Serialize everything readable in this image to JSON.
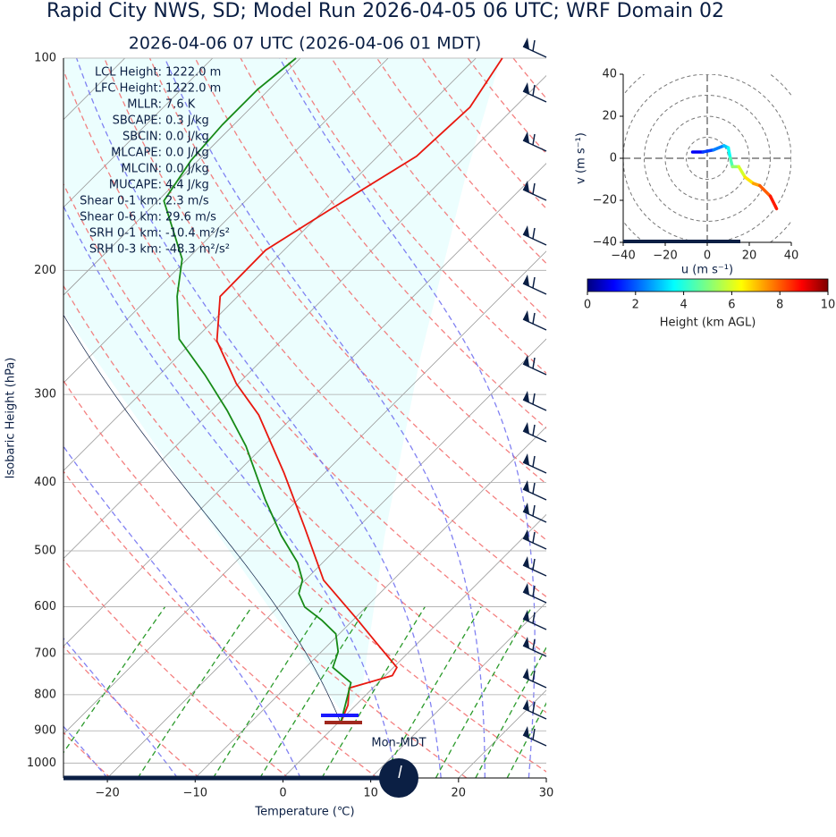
{
  "chart_data": [
    {
      "type": "skewt",
      "title": "Rapid City NWS, SD; Model Run 2026-04-05 06 UTC; WRF Domain 02",
      "subtitle": "2026-04-06 07 UTC  (2026-04-06 01 MDT)",
      "xlabel": "Temperature (℃)",
      "ylabel": "Isobaric Height (hPa)",
      "xlim": [
        -25,
        30
      ],
      "ylim": [
        1050,
        100
      ],
      "log_y": true,
      "grid": true,
      "xticks": [
        {
          "value": -20,
          "label": "−20"
        },
        {
          "value": -10,
          "label": "−10"
        },
        0,
        10,
        20,
        30
      ],
      "yticks": [
        100,
        200,
        300,
        400,
        500,
        600,
        700,
        800,
        900,
        1000
      ],
      "series": [
        {
          "color": "#e8180f",
          "pressure": [
            100,
            117.4,
            137.8,
            164.1,
            187.2,
            217.8,
            251.9,
            289.7,
            320.8,
            387.8,
            461.9,
            550.3,
            623.6,
            674.8,
            731.9,
            751.6,
            782.9,
            827.4,
            877
          ],
          "values": [
            -57.0,
            -55.1,
            -55.6,
            -59.4,
            -62.1,
            -62.0,
            -57.3,
            -50.2,
            -44.1,
            -34.6,
            -26.2,
            -17.9,
            -9.8,
            -4.8,
            0.4,
            0.8,
            -2.7,
            -0.9,
            0.3
          ]
        },
        {
          "color": "#178a17",
          "pressure": [
            100,
            110.7,
            124.4,
            139.8,
            159.4,
            192.7,
            217.8,
            250.4,
            281.4,
            316.2,
            355.3,
            423.2,
            475.6,
            519.2,
            550.3,
            574.9,
            600.6,
            627.5,
            655.6,
            694.9,
            731.9,
            769.3,
            827.4,
            877
          ],
          "values": [
            -80.5,
            -81.3,
            -81.3,
            -80.8,
            -79.3,
            -70.6,
            -66.9,
            -61.8,
            -54.8,
            -48.2,
            -42.0,
            -33.7,
            -27.8,
            -22.9,
            -20.3,
            -19.2,
            -17.0,
            -13.5,
            -10.4,
            -8.1,
            -6.9,
            -3.1,
            -1.2,
            0.3
          ]
        }
      ],
      "annotations": [
        {
          "label": "LCL Height:",
          "value": "1222.0 m"
        },
        {
          "label": "LFC Height:",
          "value": "1222.0 m"
        },
        {
          "label": "MLLR:",
          "value": "7.6 K"
        },
        {
          "label": "SBCAPE:",
          "value": "0.3 J/kg"
        },
        {
          "label": "SBCIN:",
          "value": "0.0 J/kg"
        },
        {
          "label": "MLCAPE:",
          "value": "0.0 J/kg"
        },
        {
          "label": "MLCIN:",
          "value": "0.0 J/kg"
        },
        {
          "label": "MUCAPE:",
          "value": "4.4 J/kg"
        },
        {
          "label": "Shear 0-1 km:",
          "value": "2.3 m/s"
        },
        {
          "label": "Shear 0-6 km:",
          "value": "29.6 m/s"
        },
        {
          "label": "SRH 0-1 km:",
          "value": "-10.4 m²/s²"
        },
        {
          "label": "SRH 0-3 km:",
          "value": "-48.3 m²/s²"
        }
      ],
      "clock_label": "Mon-MDT"
    },
    {
      "type": "hodograph",
      "xlabel": "u (m s⁻¹)",
      "ylabel": "v (m s⁻¹)",
      "xlim": [
        -40,
        40
      ],
      "ylim": [
        -40,
        40
      ],
      "xticks": [
        {
          "value": -40,
          "label": "−40"
        },
        {
          "value": -20,
          "label": "−20"
        },
        0,
        20,
        40
      ],
      "yticks": [
        {
          "value": -40,
          "label": "−40"
        },
        {
          "value": -20,
          "label": "−20"
        },
        0,
        20,
        40
      ],
      "x": [
        -7,
        -2,
        3,
        8,
        10,
        11,
        12,
        15,
        18,
        22,
        25,
        30,
        33
      ],
      "values": [
        3,
        3,
        4,
        6,
        5,
        0,
        -4,
        -4,
        -9,
        -12,
        -13,
        -18,
        -24
      ],
      "colorbar": {
        "label": "Height (km AGL)",
        "lim": [
          0,
          10
        ],
        "ticks": [
          0,
          2,
          4,
          6,
          8,
          10
        ]
      }
    }
  ]
}
